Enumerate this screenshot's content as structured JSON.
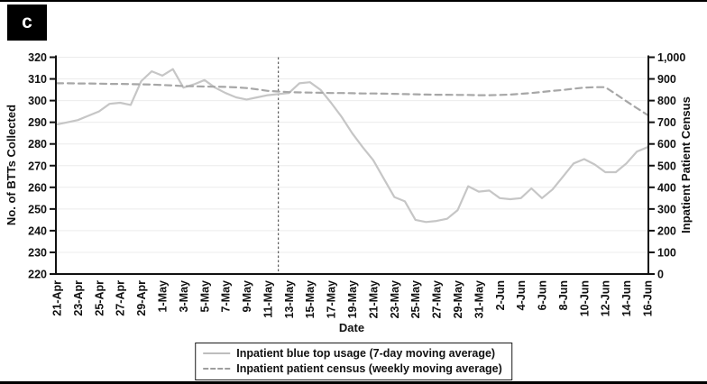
{
  "panel_label": "c",
  "chart_data": {
    "type": "line",
    "xlabel": "Date",
    "ylabel_left": "No. of BTTs Collected",
    "ylabel_right": "Inpatient Patient Census",
    "x_start": "21-Apr",
    "x_end": "16-Jun",
    "x_tick_step_days": 2,
    "x_tick_labels": [
      "21-Apr",
      "23-Apr",
      "25-Apr",
      "27-Apr",
      "29-Apr",
      "1-May",
      "3-May",
      "5-May",
      "7-May",
      "9-May",
      "11-May",
      "13-May",
      "15-May",
      "17-May",
      "19-May",
      "21-May",
      "23-May",
      "25-May",
      "27-May",
      "29-May",
      "31-May",
      "2-Jun",
      "4-Jun",
      "6-Jun",
      "8-Jun",
      "10-Jun",
      "12-Jun",
      "14-Jun",
      "16-Jun"
    ],
    "left_axis": {
      "min": 220,
      "max": 320,
      "tick_interval": 10,
      "tick_labels": [
        "220",
        "230",
        "240",
        "250",
        "260",
        "270",
        "280",
        "290",
        "300",
        "310",
        "320"
      ]
    },
    "right_axis": {
      "min": 0,
      "max": 1000,
      "tick_interval": 100,
      "tick_labels": [
        "0",
        "100",
        "200",
        "300",
        "400",
        "500",
        "600",
        "700",
        "800",
        "900",
        "1,000"
      ]
    },
    "reference_line": {
      "date": "12-May",
      "day_index": 21,
      "style": "vertical dashed"
    },
    "grid": "horizontal gridlines at left-axis ticks",
    "legend_position": "bottom-center",
    "sampling": "daily points, 21-Apr through 16-Jun (57 points)",
    "series": [
      {
        "name": "Inpatient blue top usage (7-day moving average)",
        "axis": "left",
        "line_style": "solid",
        "color": "#c6c6c6",
        "values": [
          289,
          290,
          291,
          293,
          295,
          298.5,
          299,
          298,
          309,
          313.5,
          311.5,
          314.5,
          306,
          307.5,
          309.5,
          306,
          303.5,
          301.5,
          300.5,
          301.5,
          302.5,
          303,
          303.5,
          308,
          308.5,
          305,
          299,
          292.5,
          285,
          278.5,
          272.5,
          264,
          255.5,
          253.5,
          245,
          244,
          244.5,
          245.5,
          249.5,
          260.5,
          258,
          258.5,
          255,
          254.5,
          255,
          259.5,
          255,
          259,
          265,
          271,
          273,
          270.5,
          267,
          267,
          271,
          276.5,
          278.5
        ]
      },
      {
        "name": "Inpatient patient census (weekly moving average)",
        "axis": "right",
        "line_style": "dashed",
        "color": "#a7a7a7",
        "values": [
          880,
          880,
          879,
          879,
          878,
          877,
          877,
          876,
          875,
          874,
          872,
          870,
          867,
          866,
          865,
          864,
          863,
          861,
          858,
          852,
          845,
          842,
          839,
          838,
          837,
          836,
          835,
          835,
          834,
          833,
          833,
          832,
          831,
          830,
          829,
          828,
          827,
          827,
          826,
          826,
          825,
          825,
          826,
          828,
          831,
          835,
          840,
          845,
          849,
          855,
          860,
          862,
          862,
          830,
          797,
          765,
          734
        ]
      }
    ]
  }
}
